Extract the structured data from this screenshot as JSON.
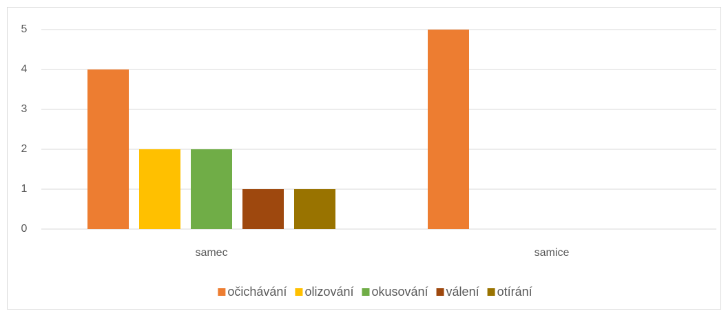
{
  "chart_data": {
    "type": "bar",
    "categories": [
      "samec",
      "samice"
    ],
    "series": [
      {
        "name": "očichávání",
        "color": "#ED7D31",
        "values": [
          4,
          5
        ]
      },
      {
        "name": "olizování",
        "color": "#FFC000",
        "values": [
          2,
          0
        ]
      },
      {
        "name": "okusování",
        "color": "#70AD47",
        "values": [
          2,
          0
        ]
      },
      {
        "name": "válení",
        "color": "#9E480E",
        "values": [
          1,
          0
        ]
      },
      {
        "name": "otírání",
        "color": "#997300",
        "values": [
          1,
          0
        ]
      }
    ],
    "ylim": [
      0,
      5
    ],
    "yticks": [
      0,
      1,
      2,
      3,
      4,
      5
    ],
    "grid": true,
    "legend": "bottom"
  }
}
